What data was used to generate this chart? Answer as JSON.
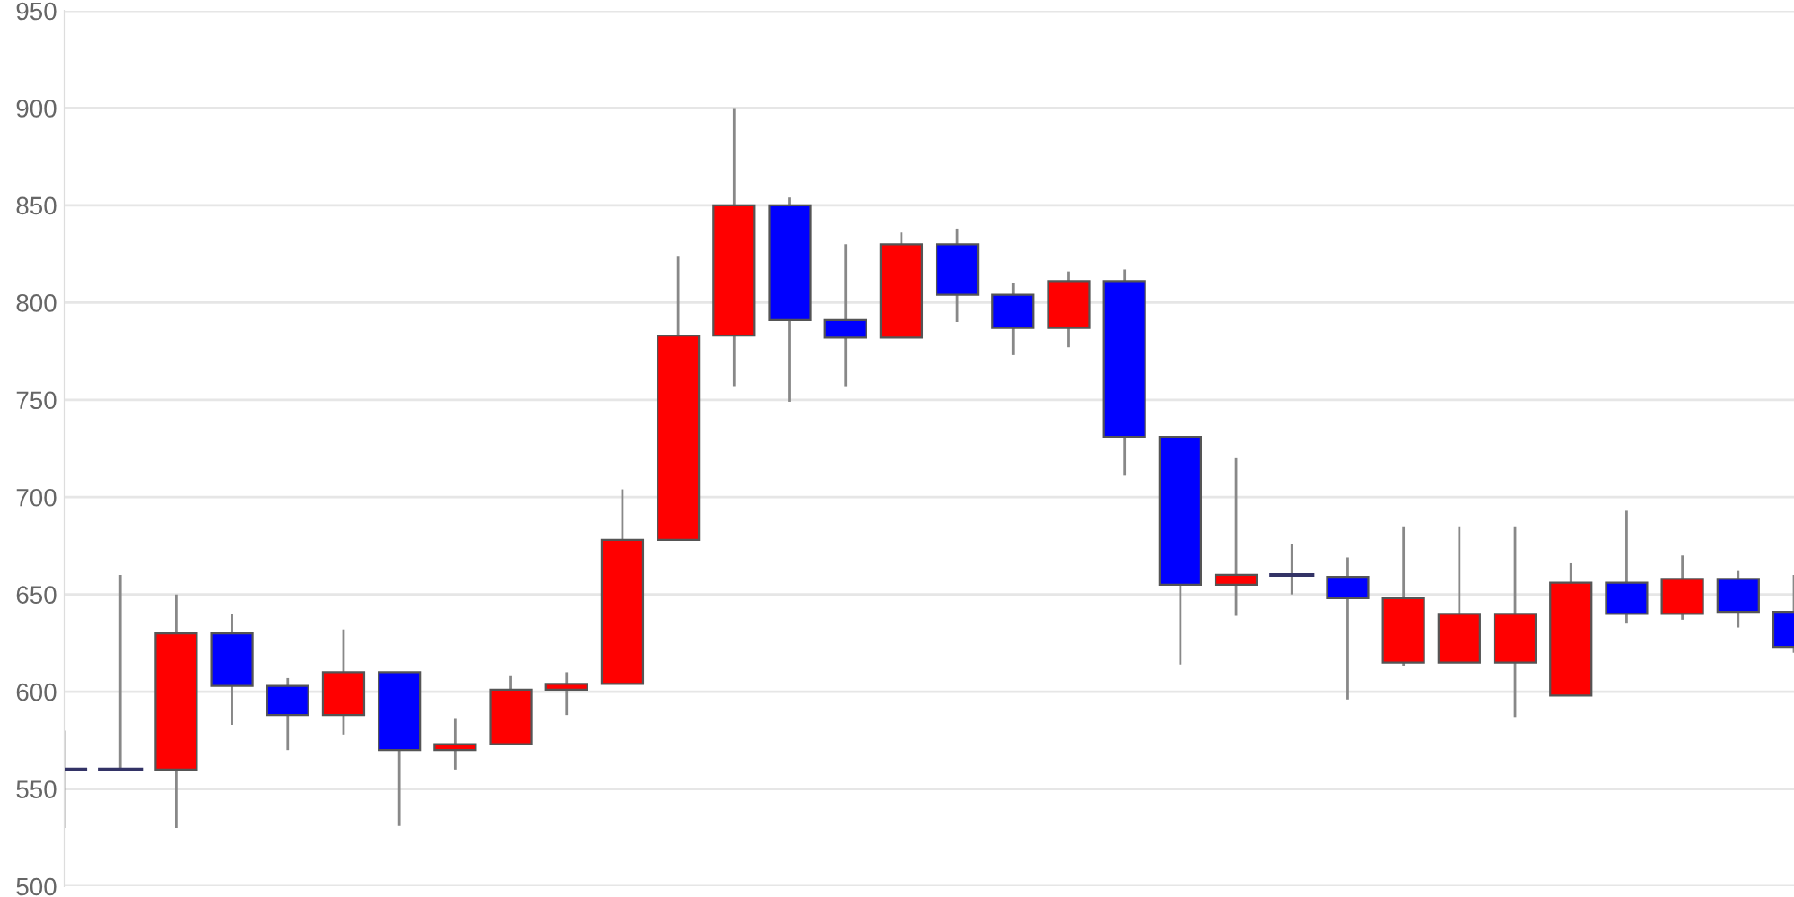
{
  "chart_data": {
    "type": "candlestick",
    "categories": [
      null,
      null,
      null,
      null,
      null,
      null,
      null,
      null,
      null,
      null,
      null,
      null,
      null,
      null,
      null,
      null,
      null,
      null,
      null,
      null,
      null,
      null,
      null,
      null,
      null,
      null,
      null,
      null,
      null,
      null,
      null,
      null
    ],
    "ohlc": [
      [
        560,
        580,
        530,
        560
      ],
      [
        560,
        660,
        560,
        560
      ],
      [
        560,
        650,
        530,
        630
      ],
      [
        630,
        640,
        583,
        603
      ],
      [
        603,
        607,
        570,
        588
      ],
      [
        588,
        632,
        578,
        610
      ],
      [
        610,
        610,
        531,
        570
      ],
      [
        570,
        586,
        560,
        573
      ],
      [
        573,
        608,
        573,
        601
      ],
      [
        601,
        610,
        588,
        604
      ],
      [
        604,
        704,
        604,
        678
      ],
      [
        678,
        824,
        678,
        783
      ],
      [
        783,
        900,
        757,
        850
      ],
      [
        850,
        854,
        749,
        791
      ],
      [
        791,
        830,
        757,
        782
      ],
      [
        782,
        836,
        782,
        830
      ],
      [
        830,
        838,
        790,
        804
      ],
      [
        804,
        810,
        773,
        787
      ],
      [
        787,
        816,
        777,
        811
      ],
      [
        811,
        817,
        711,
        731
      ],
      [
        731,
        731,
        614,
        655
      ],
      [
        655,
        720,
        639,
        660
      ],
      [
        660,
        676,
        650,
        660
      ],
      [
        659,
        669,
        596,
        648
      ],
      [
        615,
        685,
        613,
        648
      ],
      [
        615,
        685,
        615,
        640
      ],
      [
        615,
        685,
        587,
        640
      ],
      [
        598,
        666,
        598,
        656
      ],
      [
        656,
        693,
        635,
        640
      ],
      [
        640,
        670,
        637,
        658
      ],
      [
        658,
        662,
        633,
        641
      ],
      [
        641,
        660,
        620,
        623
      ]
    ],
    "colors": [
      "#333366",
      "#333366",
      "#ff0000",
      "#0000ff",
      "#0000ff",
      "#ff0000",
      "#0000ff",
      "#ff0000",
      "#ff0000",
      "#ff0000",
      "#ff0000",
      "#ff0000",
      "#ff0000",
      "#0000ff",
      "#0000ff",
      "#ff0000",
      "#0000ff",
      "#0000ff",
      "#ff0000",
      "#0000ff",
      "#0000ff",
      "#ff0000",
      "#333366",
      "#0000ff",
      "#ff0000",
      "#ff0000",
      "#ff0000",
      "#ff0000",
      "#0000ff",
      "#ff0000",
      "#0000ff",
      "#0000ff"
    ],
    "ylim": [
      500,
      950
    ],
    "yticks": [
      500,
      550,
      600,
      650,
      700,
      750,
      800,
      850,
      900,
      950
    ],
    "grid": "y",
    "tick_labels": "y"
  }
}
